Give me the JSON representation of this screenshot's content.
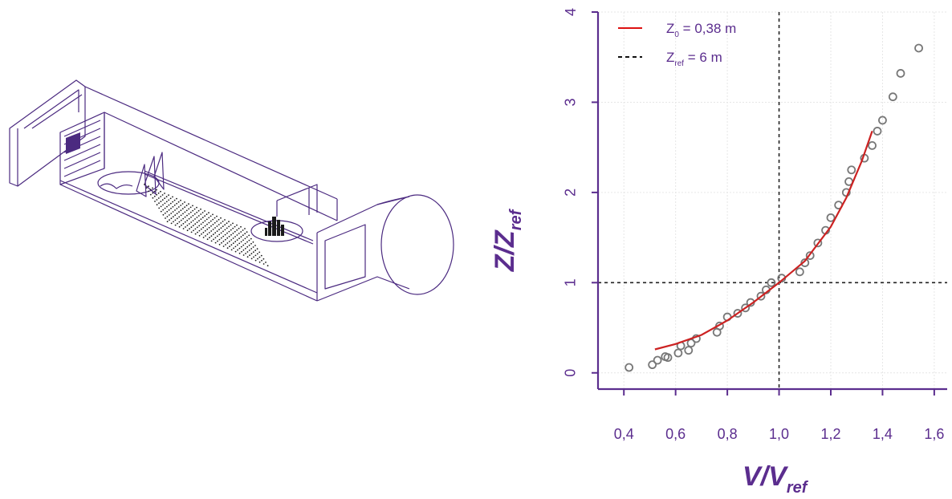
{
  "chart_data": {
    "type": "scatter",
    "title": "",
    "xlabel": {
      "main": "V/V",
      "sub": "ref"
    },
    "ylabel": {
      "main": "Z/Z",
      "sub": "ref"
    },
    "xlim": [
      0.3,
      1.65
    ],
    "ylim": [
      -0.18,
      4
    ],
    "x_ticks": [
      0.4,
      0.6,
      0.8,
      1.0,
      1.2,
      1.4,
      1.6
    ],
    "x_tick_labels": [
      "0,4",
      "0,6",
      "0,8",
      "1,0",
      "1,2",
      "1,4",
      "1,6"
    ],
    "y_ticks": [
      0,
      1,
      2,
      3,
      4
    ],
    "y_tick_labels": [
      "0",
      "1",
      "2",
      "3",
      "4"
    ],
    "grid": true,
    "legend_position": "top-left",
    "legend": [
      {
        "style": "solid",
        "color": "#dd1111",
        "main": "Z",
        "sub": "0",
        "rest": " = 0,38 m"
      },
      {
        "style": "dashed",
        "color": "#111111",
        "main": "Z",
        "sub": "ref",
        "rest": " = 6 m"
      }
    ],
    "reference_lines": {
      "x": 1.0,
      "y": 1.0
    },
    "series": [
      {
        "kind": "points",
        "color": "#777777",
        "points": [
          [
            0.42,
            0.06
          ],
          [
            0.51,
            0.09
          ],
          [
            0.53,
            0.14
          ],
          [
            0.56,
            0.18
          ],
          [
            0.57,
            0.17
          ],
          [
            0.61,
            0.22
          ],
          [
            0.62,
            0.3
          ],
          [
            0.65,
            0.25
          ],
          [
            0.66,
            0.33
          ],
          [
            0.68,
            0.38
          ],
          [
            0.76,
            0.45
          ],
          [
            0.77,
            0.52
          ],
          [
            0.8,
            0.62
          ],
          [
            0.84,
            0.66
          ],
          [
            0.87,
            0.72
          ],
          [
            0.89,
            0.78
          ],
          [
            0.93,
            0.85
          ],
          [
            0.95,
            0.92
          ],
          [
            0.97,
            1.0
          ],
          [
            1.01,
            1.05
          ],
          [
            1.08,
            1.12
          ],
          [
            1.1,
            1.22
          ],
          [
            1.12,
            1.3
          ],
          [
            1.15,
            1.44
          ],
          [
            1.18,
            1.58
          ],
          [
            1.2,
            1.72
          ],
          [
            1.23,
            1.86
          ],
          [
            1.26,
            2.0
          ],
          [
            1.27,
            2.12
          ],
          [
            1.28,
            2.25
          ],
          [
            1.33,
            2.38
          ],
          [
            1.36,
            2.52
          ],
          [
            1.38,
            2.68
          ],
          [
            1.4,
            2.8
          ],
          [
            1.44,
            3.06
          ],
          [
            1.47,
            3.32
          ],
          [
            1.54,
            3.6
          ]
        ]
      },
      {
        "kind": "curve",
        "color": "#cc2222",
        "points": [
          [
            0.52,
            0.26
          ],
          [
            0.6,
            0.32
          ],
          [
            0.7,
            0.42
          ],
          [
            0.8,
            0.58
          ],
          [
            0.9,
            0.78
          ],
          [
            1.0,
            1.0
          ],
          [
            1.1,
            1.24
          ],
          [
            1.2,
            1.62
          ],
          [
            1.26,
            1.94
          ],
          [
            1.32,
            2.35
          ],
          [
            1.36,
            2.68
          ]
        ]
      }
    ]
  },
  "colors": {
    "axis": "#5b2d8e",
    "tunnel": "#4b2a80"
  }
}
